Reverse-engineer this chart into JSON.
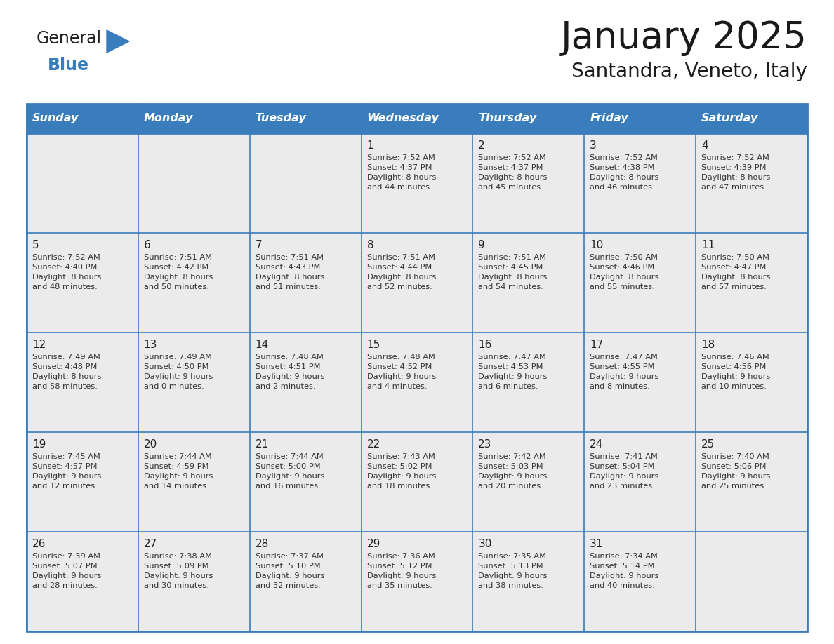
{
  "title": "January 2025",
  "subtitle": "Santandra, Veneto, Italy",
  "header_bg_color": "#3A7DBD",
  "header_text_color": "#FFFFFF",
  "cell_bg_color": "#EBEBEB",
  "border_color": "#3A7DBD",
  "title_color": "#1a1a1a",
  "subtitle_color": "#1a1a1a",
  "day_names": [
    "Sunday",
    "Monday",
    "Tuesday",
    "Wednesday",
    "Thursday",
    "Friday",
    "Saturday"
  ],
  "logo_general_color": "#222222",
  "logo_blue_color": "#3A7DBD",
  "weeks": [
    [
      {
        "day": "",
        "info": ""
      },
      {
        "day": "",
        "info": ""
      },
      {
        "day": "",
        "info": ""
      },
      {
        "day": "1",
        "info": "Sunrise: 7:52 AM\nSunset: 4:37 PM\nDaylight: 8 hours\nand 44 minutes."
      },
      {
        "day": "2",
        "info": "Sunrise: 7:52 AM\nSunset: 4:37 PM\nDaylight: 8 hours\nand 45 minutes."
      },
      {
        "day": "3",
        "info": "Sunrise: 7:52 AM\nSunset: 4:38 PM\nDaylight: 8 hours\nand 46 minutes."
      },
      {
        "day": "4",
        "info": "Sunrise: 7:52 AM\nSunset: 4:39 PM\nDaylight: 8 hours\nand 47 minutes."
      }
    ],
    [
      {
        "day": "5",
        "info": "Sunrise: 7:52 AM\nSunset: 4:40 PM\nDaylight: 8 hours\nand 48 minutes."
      },
      {
        "day": "6",
        "info": "Sunrise: 7:51 AM\nSunset: 4:42 PM\nDaylight: 8 hours\nand 50 minutes."
      },
      {
        "day": "7",
        "info": "Sunrise: 7:51 AM\nSunset: 4:43 PM\nDaylight: 8 hours\nand 51 minutes."
      },
      {
        "day": "8",
        "info": "Sunrise: 7:51 AM\nSunset: 4:44 PM\nDaylight: 8 hours\nand 52 minutes."
      },
      {
        "day": "9",
        "info": "Sunrise: 7:51 AM\nSunset: 4:45 PM\nDaylight: 8 hours\nand 54 minutes."
      },
      {
        "day": "10",
        "info": "Sunrise: 7:50 AM\nSunset: 4:46 PM\nDaylight: 8 hours\nand 55 minutes."
      },
      {
        "day": "11",
        "info": "Sunrise: 7:50 AM\nSunset: 4:47 PM\nDaylight: 8 hours\nand 57 minutes."
      }
    ],
    [
      {
        "day": "12",
        "info": "Sunrise: 7:49 AM\nSunset: 4:48 PM\nDaylight: 8 hours\nand 58 minutes."
      },
      {
        "day": "13",
        "info": "Sunrise: 7:49 AM\nSunset: 4:50 PM\nDaylight: 9 hours\nand 0 minutes."
      },
      {
        "day": "14",
        "info": "Sunrise: 7:48 AM\nSunset: 4:51 PM\nDaylight: 9 hours\nand 2 minutes."
      },
      {
        "day": "15",
        "info": "Sunrise: 7:48 AM\nSunset: 4:52 PM\nDaylight: 9 hours\nand 4 minutes."
      },
      {
        "day": "16",
        "info": "Sunrise: 7:47 AM\nSunset: 4:53 PM\nDaylight: 9 hours\nand 6 minutes."
      },
      {
        "day": "17",
        "info": "Sunrise: 7:47 AM\nSunset: 4:55 PM\nDaylight: 9 hours\nand 8 minutes."
      },
      {
        "day": "18",
        "info": "Sunrise: 7:46 AM\nSunset: 4:56 PM\nDaylight: 9 hours\nand 10 minutes."
      }
    ],
    [
      {
        "day": "19",
        "info": "Sunrise: 7:45 AM\nSunset: 4:57 PM\nDaylight: 9 hours\nand 12 minutes."
      },
      {
        "day": "20",
        "info": "Sunrise: 7:44 AM\nSunset: 4:59 PM\nDaylight: 9 hours\nand 14 minutes."
      },
      {
        "day": "21",
        "info": "Sunrise: 7:44 AM\nSunset: 5:00 PM\nDaylight: 9 hours\nand 16 minutes."
      },
      {
        "day": "22",
        "info": "Sunrise: 7:43 AM\nSunset: 5:02 PM\nDaylight: 9 hours\nand 18 minutes."
      },
      {
        "day": "23",
        "info": "Sunrise: 7:42 AM\nSunset: 5:03 PM\nDaylight: 9 hours\nand 20 minutes."
      },
      {
        "day": "24",
        "info": "Sunrise: 7:41 AM\nSunset: 5:04 PM\nDaylight: 9 hours\nand 23 minutes."
      },
      {
        "day": "25",
        "info": "Sunrise: 7:40 AM\nSunset: 5:06 PM\nDaylight: 9 hours\nand 25 minutes."
      }
    ],
    [
      {
        "day": "26",
        "info": "Sunrise: 7:39 AM\nSunset: 5:07 PM\nDaylight: 9 hours\nand 28 minutes."
      },
      {
        "day": "27",
        "info": "Sunrise: 7:38 AM\nSunset: 5:09 PM\nDaylight: 9 hours\nand 30 minutes."
      },
      {
        "day": "28",
        "info": "Sunrise: 7:37 AM\nSunset: 5:10 PM\nDaylight: 9 hours\nand 32 minutes."
      },
      {
        "day": "29",
        "info": "Sunrise: 7:36 AM\nSunset: 5:12 PM\nDaylight: 9 hours\nand 35 minutes."
      },
      {
        "day": "30",
        "info": "Sunrise: 7:35 AM\nSunset: 5:13 PM\nDaylight: 9 hours\nand 38 minutes."
      },
      {
        "day": "31",
        "info": "Sunrise: 7:34 AM\nSunset: 5:14 PM\nDaylight: 9 hours\nand 40 minutes."
      },
      {
        "day": "",
        "info": ""
      }
    ]
  ]
}
